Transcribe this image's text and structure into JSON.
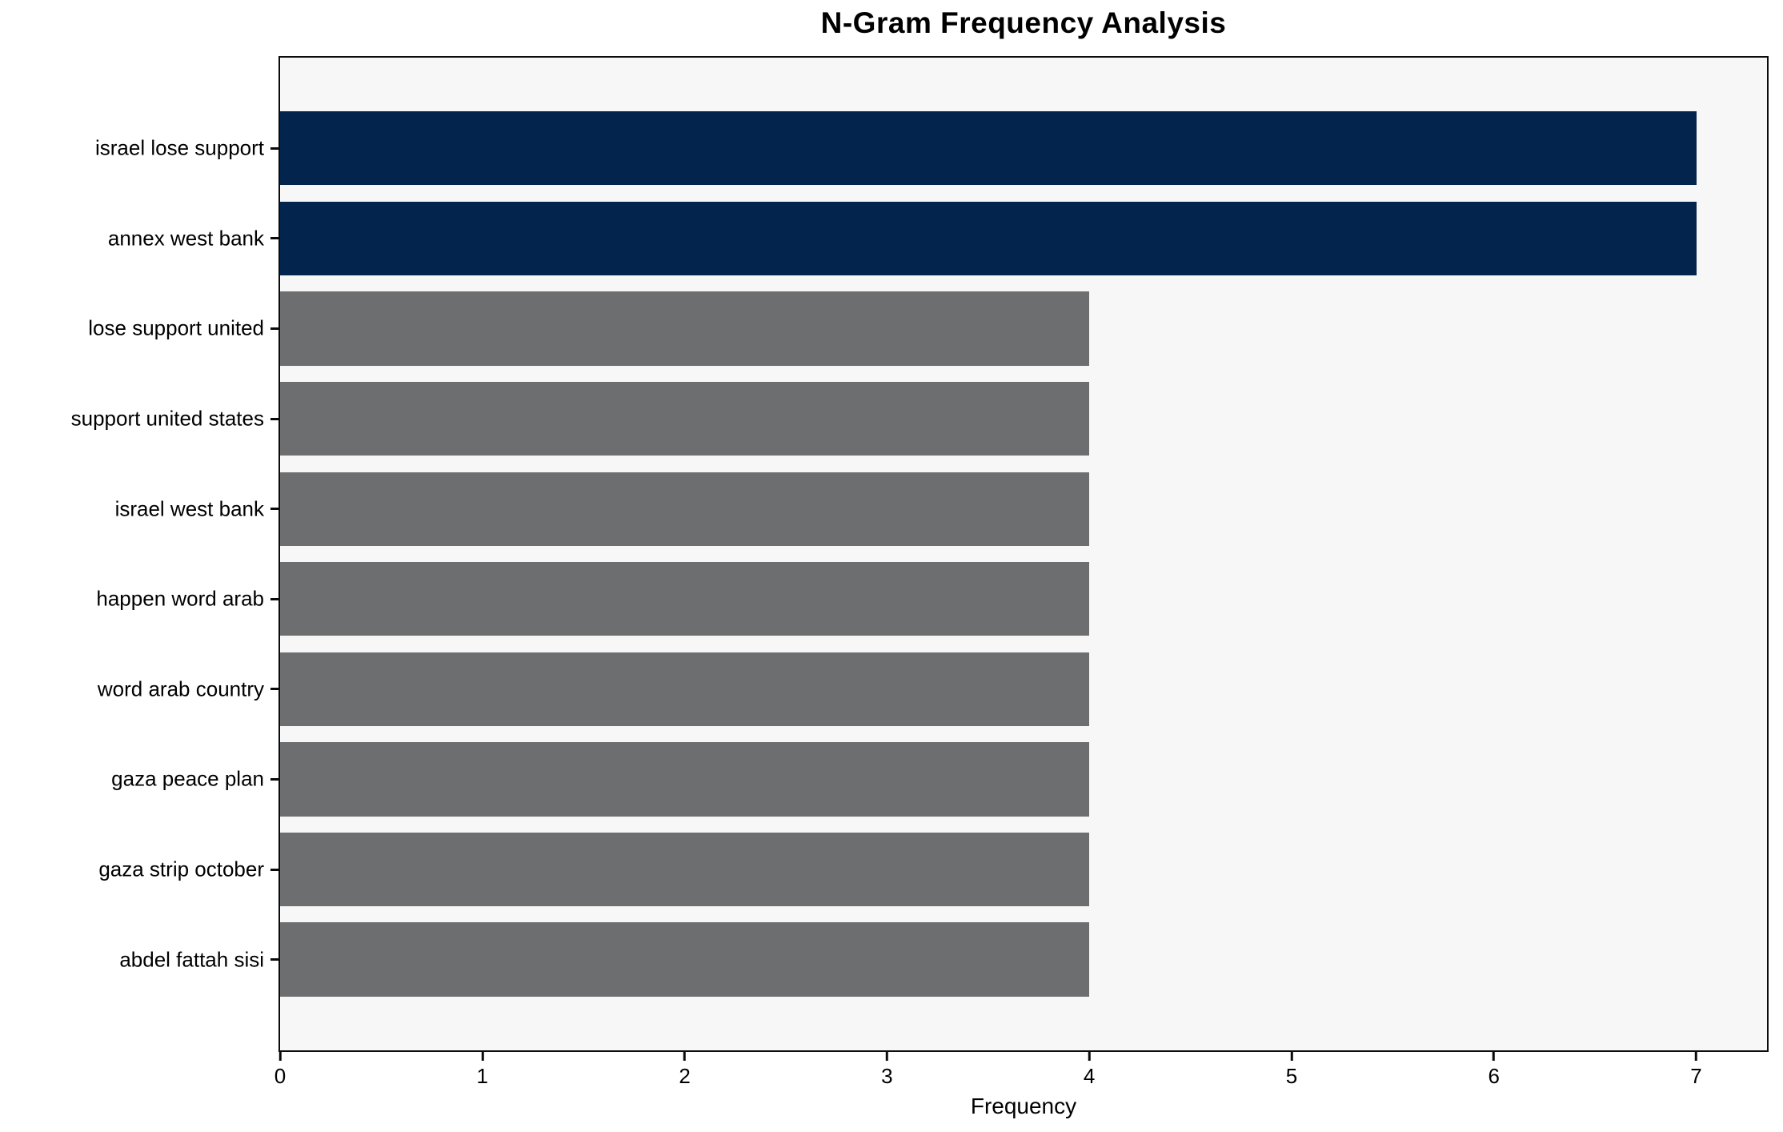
{
  "title": "N-Gram Frequency Analysis",
  "xlabel": "Frequency",
  "colors": {
    "bar_highlight": "#03254D",
    "bar_default": "#6C6E70",
    "plot_background": "#F7F7F8",
    "spine": "#0B0B0B",
    "text": "#000000",
    "figure_background": "#FFFFFF"
  },
  "chart_data": {
    "type": "bar",
    "orientation": "horizontal",
    "title": "N-Gram Frequency Analysis",
    "xlabel": "Frequency",
    "ylabel": "",
    "categories": [
      "israel lose support",
      "annex west bank",
      "lose support united",
      "support united states",
      "israel west bank",
      "happen word arab",
      "word arab country",
      "gaza peace plan",
      "gaza strip october",
      "abdel fattah sisi"
    ],
    "values": [
      7,
      7,
      4,
      4,
      4,
      4,
      4,
      4,
      4,
      4
    ],
    "bar_colors": [
      "#03254D",
      "#03254D",
      "#6C6E70",
      "#6C6E70",
      "#6C6E70",
      "#6C6E70",
      "#6C6E70",
      "#6C6E70",
      "#6C6E70",
      "#6C6E70"
    ],
    "xticks": [
      0,
      1,
      2,
      3,
      4,
      5,
      6,
      7
    ],
    "xlim": [
      0,
      7.35
    ],
    "grid": false,
    "legend": false
  }
}
